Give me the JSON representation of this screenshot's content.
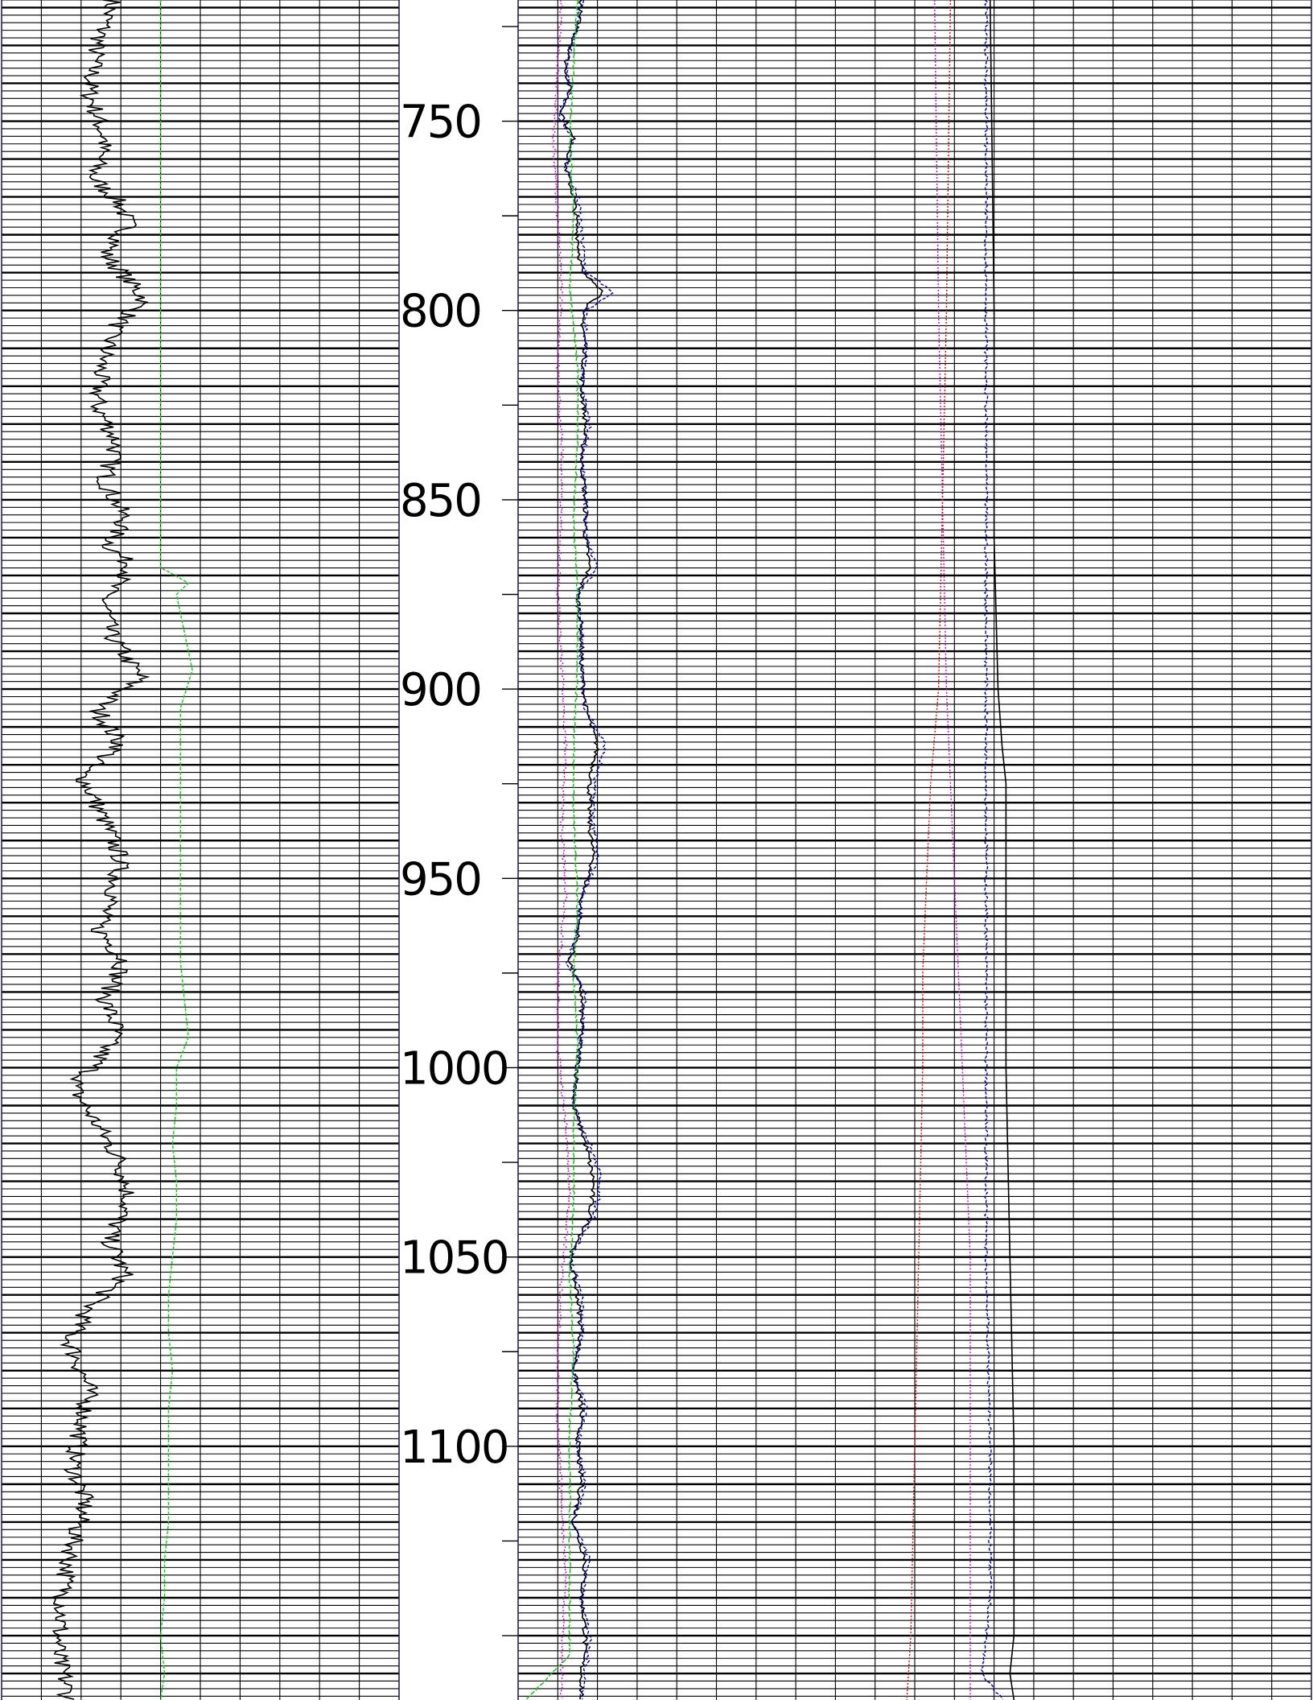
{
  "chart_data": {
    "type": "line",
    "title": "",
    "depth_axis": {
      "range": [
        718,
        1167
      ],
      "labels": [
        "750",
        "800",
        "850",
        "900",
        "950",
        "1000",
        "1050",
        "1100"
      ],
      "label_values": [
        750,
        800,
        850,
        900,
        950,
        1000,
        1050,
        1100
      ],
      "major_ticks": [
        725,
        750,
        775,
        800,
        825,
        850,
        875,
        900,
        925,
        950,
        975,
        1000,
        1025,
        1050,
        1075,
        1100,
        1125,
        1150
      ],
      "grid_step_minor": 2,
      "grid_step_major": 10
    },
    "tracks": [
      {
        "id": "track1",
        "x_range": [
          0,
          10
        ],
        "vertical_grid_count": 10,
        "series": [
          {
            "color": "#000000",
            "dash": "none",
            "depth": [
              718,
              730,
              742,
              755,
              765,
              772,
              778,
              785,
              797,
              805,
              815,
              825,
              835,
              845,
              855,
              862,
              868,
              875,
              885,
              897,
              905,
              915,
              922,
              935,
              945,
              955,
              963,
              972,
              982,
              990,
              1000,
              1005,
              1015,
              1025,
              1035,
              1045,
              1055,
              1062,
              1072,
              1085,
              1095,
              1105,
              1115,
              1125,
              1135,
              1145,
              1155,
              1162,
              1167
            ],
            "values": [
              2.8,
              2.4,
              2.2,
              2.6,
              2.3,
              3.0,
              3.2,
              2.6,
              3.6,
              2.8,
              2.5,
              2.4,
              2.9,
              2.6,
              3.1,
              2.7,
              3.3,
              2.6,
              2.7,
              3.5,
              2.4,
              3.0,
              2.0,
              2.6,
              3.0,
              2.8,
              2.4,
              3.1,
              2.6,
              2.9,
              2.3,
              1.8,
              2.4,
              3.0,
              3.2,
              2.7,
              3.1,
              2.3,
              1.7,
              2.2,
              2.0,
              1.8,
              2.1,
              1.8,
              1.6,
              1.5,
              1.4,
              1.6,
              1.7
            ],
            "jitter": 0.5
          },
          {
            "color": "#00dd00",
            "dash": "4 2",
            "depth": [
              718,
              868,
              869,
              872,
              875,
              880,
              885,
              890,
              895,
              905,
              915,
              925,
              935,
              945,
              955,
              965,
              972,
              982,
              992,
              1000,
              1010,
              1020,
              1030,
              1040,
              1050,
              1060,
              1070,
              1080,
              1090,
              1100,
              1110,
              1120,
              1130,
              1140,
              1150,
              1160,
              1167
            ],
            "values": [
              4.0,
              4.0,
              4.2,
              4.7,
              4.4,
              4.5,
              4.6,
              4.7,
              4.8,
              4.5,
              4.5,
              4.5,
              4.5,
              4.5,
              4.5,
              4.5,
              4.5,
              4.6,
              4.7,
              4.4,
              4.4,
              4.3,
              4.4,
              4.4,
              4.3,
              4.2,
              4.2,
              4.3,
              4.2,
              4.2,
              4.2,
              4.2,
              4.1,
              4.1,
              4.0,
              4.1,
              4.0
            ]
          }
        ]
      },
      {
        "id": "track2",
        "x_range": [
          0,
          20
        ],
        "vertical_grid_count": 20,
        "series": [
          {
            "color": "#000000",
            "dash": "none",
            "depth": [
              718,
              725,
              735,
              742,
              748,
              755,
              762,
              770,
              780,
              790,
              795,
              800,
              810,
              820,
              830,
              840,
              850,
              860,
              868,
              875,
              885,
              895,
              905,
              915,
              925,
              935,
              945,
              955,
              965,
              972,
              980,
              990,
              1000,
              1010,
              1020,
              1030,
              1040,
              1050,
              1060,
              1070,
              1080,
              1090,
              1100,
              1110,
              1120,
              1130,
              1140,
              1150,
              1160,
              1167
            ],
            "values": [
              1.6,
              1.5,
              1.2,
              1.3,
              1.1,
              1.4,
              1.2,
              1.4,
              1.5,
              1.6,
              2.2,
              1.6,
              1.7,
              1.6,
              1.7,
              1.6,
              1.7,
              1.7,
              1.8,
              1.5,
              1.6,
              1.6,
              1.7,
              2.0,
              1.8,
              1.8,
              1.9,
              1.6,
              1.5,
              1.3,
              1.6,
              1.6,
              1.5,
              1.4,
              1.7,
              1.9,
              1.8,
              1.3,
              1.5,
              1.6,
              1.4,
              1.6,
              1.5,
              1.6,
              1.4,
              1.7,
              1.6,
              1.7,
              1.6,
              1.6
            ],
            "jitter": 0.12
          },
          {
            "color": "#0000cc",
            "dash": "4 2",
            "depth": [
              718,
              725,
              735,
              742,
              748,
              755,
              762,
              770,
              780,
              790,
              795,
              800,
              810,
              820,
              830,
              840,
              850,
              860,
              868,
              875,
              885,
              895,
              905,
              915,
              925,
              935,
              945,
              955,
              965,
              972,
              980,
              990,
              1000,
              1010,
              1020,
              1030,
              1040,
              1050,
              1060,
              1070,
              1080,
              1090,
              1100,
              1110,
              1120,
              1130,
              1140,
              1150,
              1160,
              1167
            ],
            "values": [
              1.6,
              1.5,
              1.2,
              1.3,
              1.0,
              1.4,
              1.2,
              1.5,
              1.6,
              1.7,
              2.4,
              1.7,
              1.7,
              1.6,
              1.8,
              1.6,
              1.7,
              1.7,
              2.0,
              1.5,
              1.6,
              1.6,
              1.7,
              2.2,
              1.9,
              1.9,
              2.0,
              1.6,
              1.5,
              1.2,
              1.7,
              1.6,
              1.5,
              1.4,
              1.8,
              2.1,
              1.9,
              1.3,
              1.6,
              1.6,
              1.4,
              1.7,
              1.5,
              1.7,
              1.4,
              1.8,
              1.6,
              1.8,
              1.7,
              1.6
            ],
            "jitter": 0.12
          },
          {
            "color": "#00cc00",
            "dash": "6 2",
            "depth": [
              718,
              735,
              755,
              775,
              795,
              815,
              835,
              855,
              875,
              895,
              915,
              935,
              955,
              975,
              995,
              1015,
              1035,
              1055,
              1075,
              1095,
              1115,
              1135,
              1155,
              1167
            ],
            "values": [
              1.5,
              1.4,
              1.3,
              1.4,
              1.3,
              1.5,
              1.5,
              1.4,
              1.5,
              1.5,
              1.4,
              1.4,
              1.5,
              1.4,
              1.5,
              1.4,
              1.4,
              1.3,
              1.4,
              1.3,
              1.3,
              1.3,
              1.3,
              0.2
            ],
            "jitter": 0.05
          },
          {
            "color": "#dd00dd",
            "dash": "2 2",
            "depth": [
              718,
              735,
              755,
              775,
              795,
              815,
              835,
              855,
              875,
              895,
              915,
              935,
              955,
              975,
              995,
              1015,
              1035,
              1055,
              1075,
              1095,
              1115,
              1135,
              1155,
              1167
            ],
            "values": [
              1.1,
              1.0,
              0.9,
              1.0,
              1.1,
              1.0,
              1.1,
              1.1,
              1.0,
              1.1,
              1.2,
              1.1,
              1.2,
              1.0,
              1.0,
              1.2,
              1.3,
              1.1,
              1.0,
              1.0,
              1.1,
              1.2,
              1.1,
              1.1
            ],
            "jitter": 0.08
          },
          {
            "color": "#dd00dd",
            "dash": "2 2",
            "depth": [
              718,
              800,
              850,
              900,
              925,
              950,
              1000,
              1050,
              1100,
              1140,
              1167
            ],
            "values": [
              10.5,
              10.6,
              10.7,
              10.8,
              10.9,
              11.0,
              11.2,
              11.4,
              11.4,
              11.4,
              11.4
            ]
          },
          {
            "color": "#ee0000",
            "dash": "2 2",
            "depth": [
              718,
              800,
              850,
              900,
              925,
              950,
              975,
              1000,
              1050,
              1100,
              1150,
              1167
            ],
            "values": [
              10.9,
              10.8,
              10.7,
              10.6,
              10.4,
              10.3,
              10.2,
              10.2,
              10.1,
              10.0,
              9.9,
              9.8
            ]
          },
          {
            "color": "#0000cc",
            "dash": "4 2",
            "depth": [
              718,
              800,
              850,
              900,
              925,
              950,
              1000,
              1050,
              1100,
              1140,
              1160,
              1167
            ],
            "values": [
              11.8,
              11.8,
              11.8,
              11.8,
              11.8,
              11.8,
              11.8,
              11.8,
              11.9,
              11.9,
              11.7,
              12.2
            ],
            "jitter": 0.08
          },
          {
            "color": "#000000",
            "dash": "none",
            "depth": [
              718,
              800,
              820,
              860,
              900,
              915,
              925,
              950,
              1000,
              1050,
              1100,
              1150,
              1160,
              1167
            ],
            "values": [
              11.9,
              12.0,
              12.0,
              12.0,
              12.1,
              12.2,
              12.3,
              12.3,
              12.3,
              12.4,
              12.5,
              12.5,
              12.4,
              12.5
            ]
          }
        ]
      }
    ],
    "grid": true,
    "legend": "none"
  }
}
